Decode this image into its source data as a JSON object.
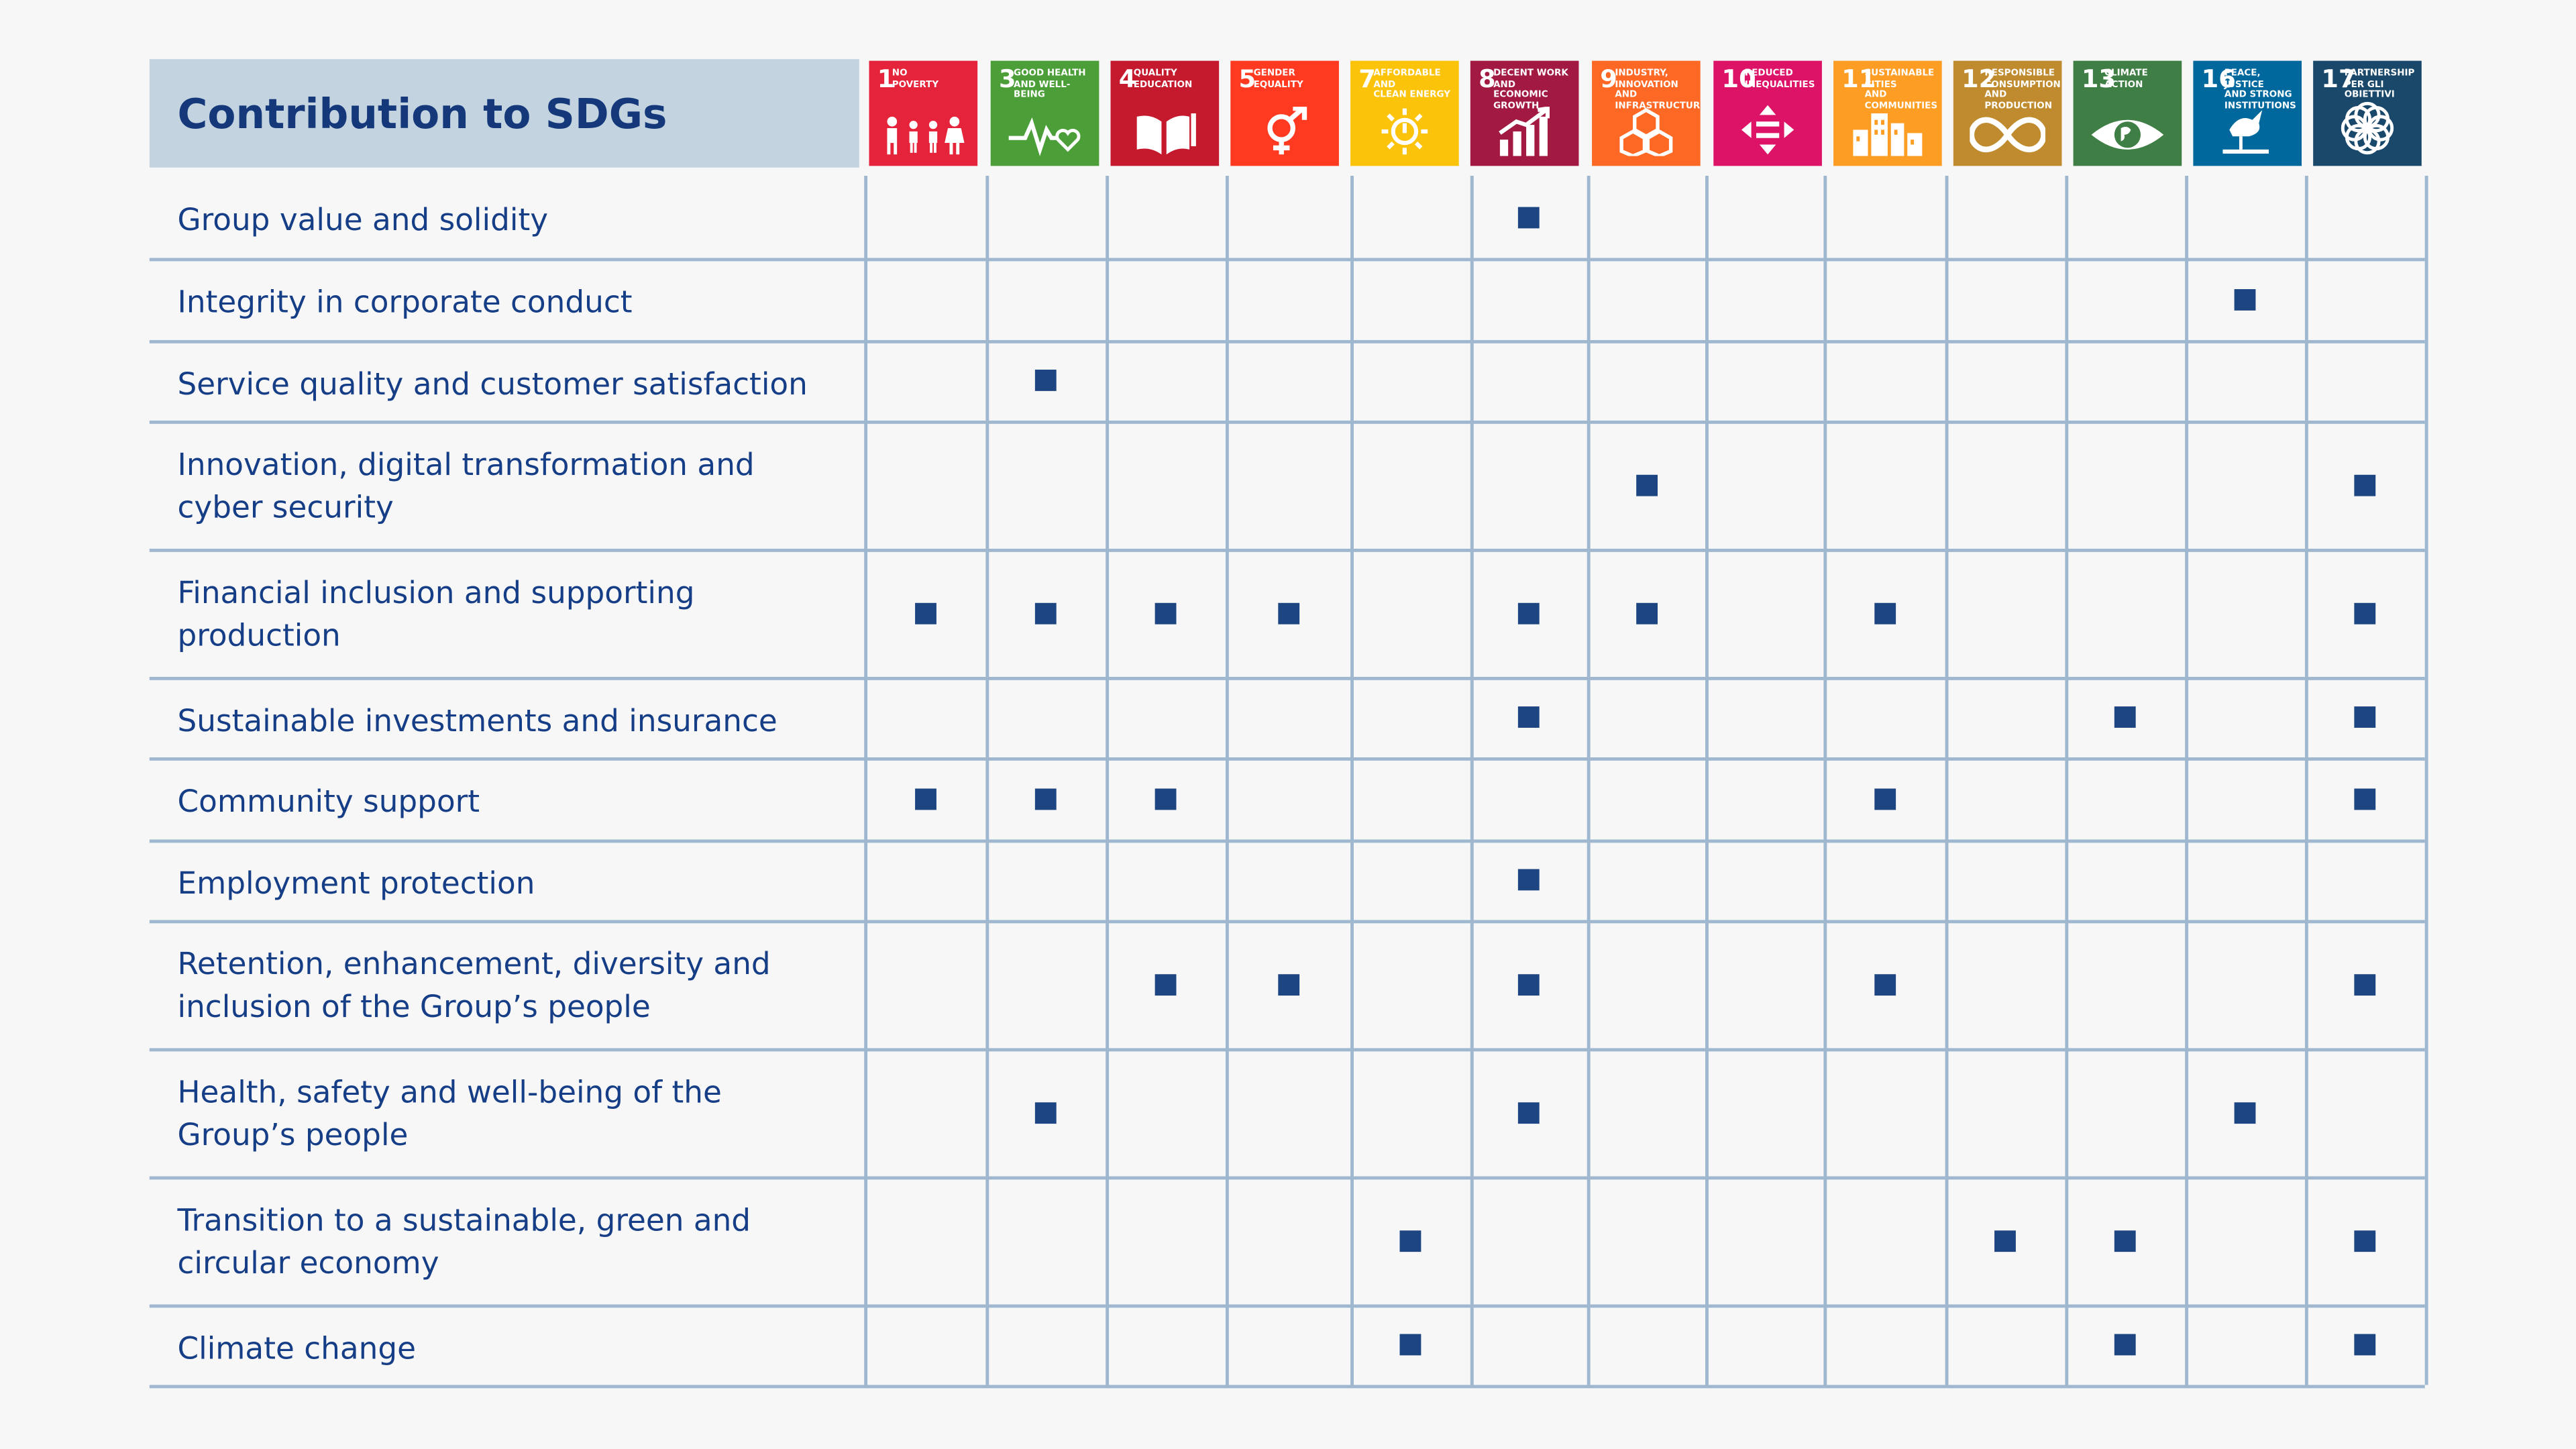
{
  "title": "Contribution to SDGs",
  "sdgs": [
    {
      "num": "1",
      "label": "No\nPoverty",
      "color": "#e5243b",
      "icon": "people-icon"
    },
    {
      "num": "3",
      "label": "Good health\nand well-being",
      "color": "#4c9f38",
      "icon": "heartbeat-icon"
    },
    {
      "num": "4",
      "label": "Quality\nEducation",
      "color": "#c5192d",
      "icon": "book-icon"
    },
    {
      "num": "5",
      "label": "Gender\nEquality",
      "color": "#ff3a21",
      "icon": "gender-icon"
    },
    {
      "num": "7",
      "label": "Affordable and\nclean energy",
      "color": "#fcc30b",
      "icon": "sun-power-icon"
    },
    {
      "num": "8",
      "label": "Decent work and\neconomic growth",
      "color": "#a21942",
      "icon": "growth-chart-icon"
    },
    {
      "num": "9",
      "label": "Industry, innovation\nand infrastructure",
      "color": "#fd6925",
      "icon": "cubes-icon"
    },
    {
      "num": "10",
      "label": "Reduced\ninequalities",
      "color": "#dd1367",
      "icon": "equality-arrows-icon"
    },
    {
      "num": "11",
      "label": "Sustainable cities\nand communities",
      "color": "#fd9d24",
      "icon": "city-icon"
    },
    {
      "num": "12",
      "label": "Responsible\nconsumption\nand production",
      "color": "#bf8b2e",
      "icon": "infinity-icon"
    },
    {
      "num": "13",
      "label": "Climate\naction",
      "color": "#3f7e44",
      "icon": "eye-globe-icon"
    },
    {
      "num": "16",
      "label": "Peace, justice\nand strong\ninstitutions",
      "color": "#00689d",
      "icon": "dove-icon"
    },
    {
      "num": "17",
      "label": "Partnership\nper gli obiettivi",
      "color": "#19486a",
      "icon": "flower-icon"
    }
  ],
  "rows": [
    {
      "label": "Group value and solidity",
      "marks": [
        0,
        0,
        0,
        0,
        0,
        1,
        0,
        0,
        0,
        0,
        0,
        0,
        0
      ]
    },
    {
      "label": "Integrity in corporate conduct",
      "marks": [
        0,
        0,
        0,
        0,
        0,
        0,
        0,
        0,
        0,
        0,
        0,
        1,
        0
      ]
    },
    {
      "label": "Service quality and customer satisfaction",
      "marks": [
        0,
        1,
        0,
        0,
        0,
        0,
        0,
        0,
        0,
        0,
        0,
        0,
        0
      ]
    },
    {
      "label": "Innovation, digital transformation and cyber security",
      "marks": [
        0,
        0,
        0,
        0,
        0,
        0,
        1,
        0,
        0,
        0,
        0,
        0,
        1
      ]
    },
    {
      "label": "Financial inclusion and supporting production",
      "marks": [
        1,
        1,
        1,
        1,
        0,
        1,
        1,
        0,
        1,
        0,
        0,
        0,
        1
      ]
    },
    {
      "label": "Sustainable investments and insurance",
      "marks": [
        0,
        0,
        0,
        0,
        0,
        1,
        0,
        0,
        0,
        0,
        1,
        0,
        1
      ]
    },
    {
      "label": "Community support",
      "marks": [
        1,
        1,
        1,
        0,
        0,
        0,
        0,
        0,
        1,
        0,
        0,
        0,
        1
      ]
    },
    {
      "label": "Employment protection",
      "marks": [
        0,
        0,
        0,
        0,
        0,
        1,
        0,
        0,
        0,
        0,
        0,
        0,
        0
      ]
    },
    {
      "label": "Retention, enhancement, diversity and inclusion of the Group’s people",
      "marks": [
        0,
        0,
        1,
        1,
        0,
        1,
        0,
        0,
        1,
        0,
        0,
        0,
        1
      ]
    },
    {
      "label": "Health, safety and well-being of the Group’s people",
      "marks": [
        0,
        1,
        0,
        0,
        0,
        1,
        0,
        0,
        0,
        0,
        0,
        1,
        0
      ]
    },
    {
      "label": "Transition to a sustainable, green and circular economy",
      "marks": [
        0,
        0,
        0,
        0,
        1,
        0,
        0,
        0,
        0,
        1,
        1,
        0,
        1
      ]
    },
    {
      "label": "Climate change",
      "marks": [
        0,
        0,
        0,
        0,
        1,
        0,
        0,
        0,
        0,
        0,
        1,
        0,
        1
      ]
    }
  ]
}
